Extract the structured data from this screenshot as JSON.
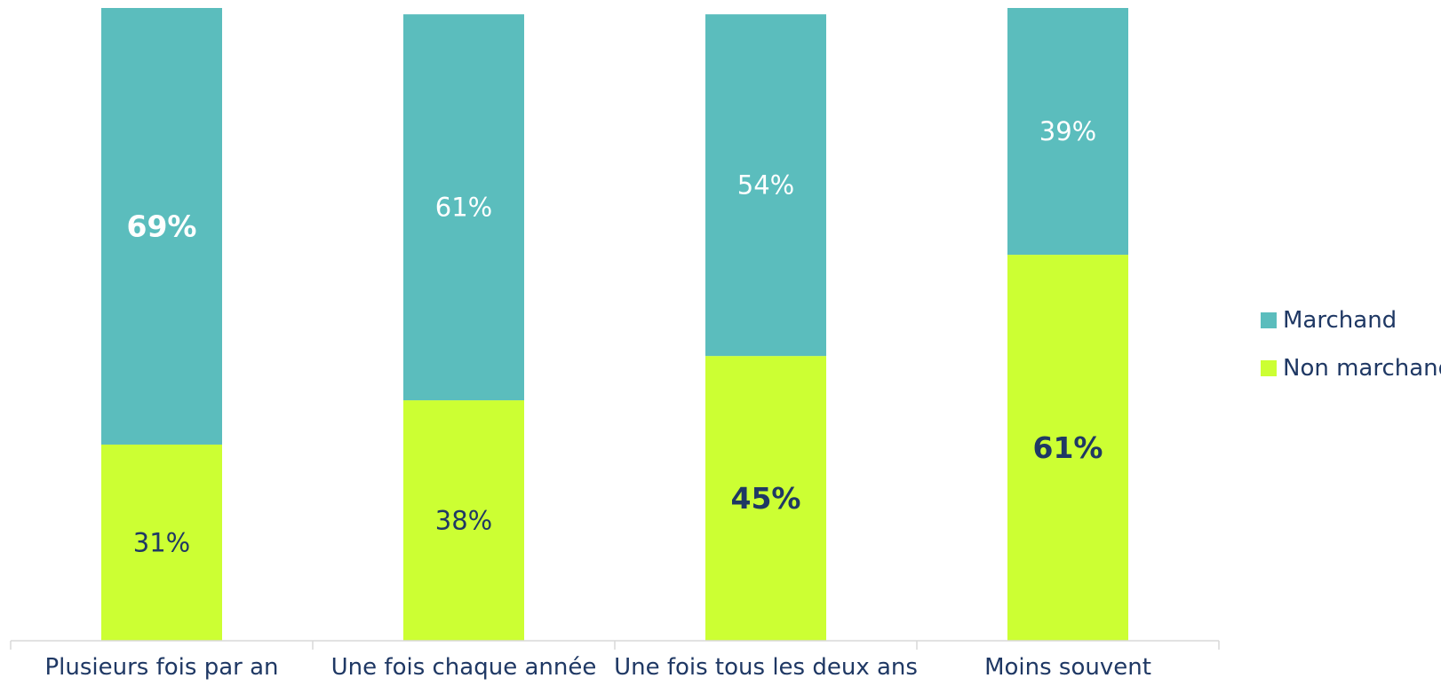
{
  "chart_data": {
    "type": "bar",
    "stacked": true,
    "percent_stacked": true,
    "categories": [
      "Plusieurs fois par an",
      "Une fois chaque année",
      "Une fois tous les deux ans",
      "Moins souvent"
    ],
    "series": [
      {
        "name": "Non marchand",
        "color": "#ccff33",
        "values": [
          31,
          38,
          45,
          61
        ],
        "labels": [
          "31%",
          "38%",
          "45%",
          "61%"
        ],
        "bold": [
          false,
          false,
          true,
          true
        ]
      },
      {
        "name": "Marchand",
        "color": "#5bbdbd",
        "values": [
          69,
          61,
          54,
          39
        ],
        "labels": [
          "69%",
          "61%",
          "54%",
          "39%"
        ],
        "bold": [
          true,
          false,
          false,
          false
        ]
      }
    ],
    "ylim": [
      0,
      100
    ],
    "grid": false,
    "legend": "right",
    "label_colors": {
      "Marchand": "#ffffff",
      "Non marchand": "#1f3864"
    }
  }
}
